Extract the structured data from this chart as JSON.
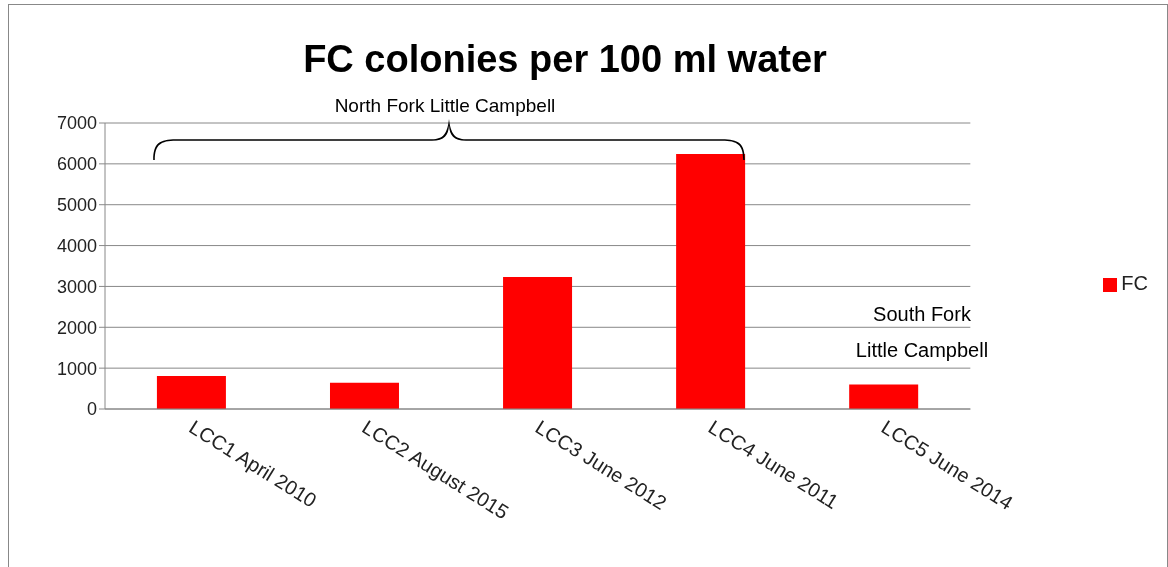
{
  "chart_data": {
    "type": "bar",
    "title": "FC colonies per 100 ml water",
    "categories": [
      "LCC1 April 2010",
      "LCC2 August 2015",
      "LCC3 June 2012",
      "LCC4 June 2011",
      "LCC5 June 2014"
    ],
    "series": [
      {
        "name": "FC",
        "color": "#ff0000",
        "values": [
          810,
          640,
          3230,
          6240,
          600
        ]
      }
    ],
    "ylim": [
      0,
      7000
    ],
    "yticks": [
      0,
      1000,
      2000,
      3000,
      4000,
      5000,
      6000,
      7000
    ],
    "grid": "y",
    "legend": "right",
    "annotations": [
      "North Fork Little Campbell",
      "South Fork\nLittle Campbell"
    ]
  }
}
